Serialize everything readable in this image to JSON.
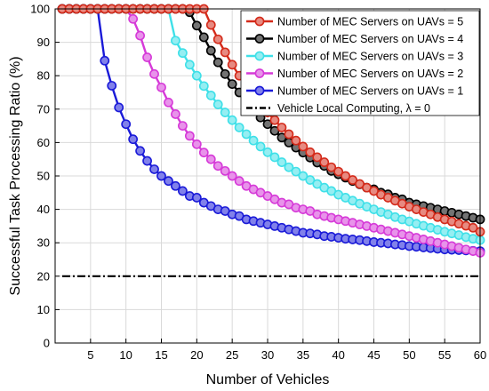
{
  "chart_data": {
    "type": "line",
    "title": "",
    "xlabel": "Number of Vehicles",
    "ylabel": "Successful Task Processing Ratio (%)",
    "xlim": [
      0,
      60
    ],
    "ylim": [
      0,
      100
    ],
    "xticks": [
      5,
      10,
      15,
      20,
      25,
      30,
      35,
      40,
      45,
      50,
      55,
      60
    ],
    "yticks": [
      0,
      10,
      20,
      30,
      40,
      50,
      60,
      70,
      80,
      90,
      100
    ],
    "grid": true,
    "legend_position": "top-right",
    "x": [
      1,
      2,
      3,
      4,
      5,
      6,
      7,
      8,
      9,
      10,
      11,
      12,
      13,
      14,
      15,
      16,
      17,
      18,
      19,
      20,
      21,
      22,
      23,
      24,
      25,
      26,
      27,
      28,
      29,
      30,
      31,
      32,
      33,
      34,
      35,
      36,
      37,
      38,
      39,
      40,
      41,
      42,
      43,
      44,
      45,
      46,
      47,
      48,
      49,
      50,
      51,
      52,
      53,
      54,
      55,
      56,
      57,
      58,
      59,
      60
    ],
    "series": [
      {
        "name": "Number of MEC Servers on UAVs = 5",
        "color": "#d42a1a",
        "marker": "circle",
        "values": [
          100,
          100,
          100,
          100,
          100,
          100,
          100,
          100,
          100,
          100,
          100,
          100,
          100,
          100,
          100,
          100,
          100,
          100,
          100,
          100,
          100,
          95.2,
          90.9,
          87.0,
          83.3,
          80.0,
          76.9,
          74.1,
          71.4,
          69.0,
          66.7,
          64.5,
          62.5,
          60.6,
          58.8,
          57.1,
          55.6,
          54.1,
          52.6,
          51.3,
          50.0,
          48.8,
          47.6,
          46.5,
          45.5,
          44.4,
          43.5,
          42.6,
          41.7,
          40.8,
          40.0,
          39.2,
          38.5,
          37.7,
          37.0,
          36.4,
          35.7,
          35.1,
          34.5,
          33.3
        ]
      },
      {
        "name": "Number of MEC Servers on UAVs = 4",
        "color": "#000000",
        "marker": "circle",
        "values": [
          100,
          100,
          100,
          100,
          100,
          100,
          100,
          100,
          100,
          100,
          100,
          100,
          100,
          100,
          100,
          100,
          100,
          100,
          99.0,
          95.0,
          91.5,
          87.5,
          84.0,
          80.5,
          77.5,
          75.0,
          72.5,
          70.0,
          67.5,
          65.5,
          63.5,
          61.5,
          60.0,
          58.5,
          57.0,
          55.5,
          54.0,
          53.0,
          51.5,
          50.5,
          49.5,
          48.5,
          47.5,
          46.5,
          46.0,
          45.0,
          44.5,
          43.5,
          43.0,
          42.0,
          41.5,
          41.0,
          40.5,
          40.0,
          39.5,
          39.0,
          38.5,
          38.0,
          37.5,
          37.0
        ]
      },
      {
        "name": "Number of MEC Servers on UAVs = 3",
        "color": "#3fe0e8",
        "marker": "circle",
        "values": [
          100,
          100,
          100,
          100,
          100,
          100,
          100,
          100,
          100,
          100,
          100,
          100,
          100,
          100,
          100,
          100,
          90.5,
          86.8,
          83.3,
          80.0,
          76.9,
          74.1,
          71.4,
          69.0,
          66.7,
          64.5,
          62.5,
          60.6,
          58.8,
          57.1,
          55.6,
          54.1,
          52.6,
          51.3,
          50.0,
          48.8,
          47.6,
          46.5,
          45.5,
          44.4,
          43.5,
          42.6,
          41.7,
          40.8,
          40.0,
          39.2,
          38.5,
          37.7,
          37.0,
          36.4,
          35.7,
          35.1,
          34.5,
          33.9,
          33.3,
          32.8,
          32.3,
          31.7,
          31.2,
          30.8
        ]
      },
      {
        "name": "Number of MEC Servers on UAVs = 2",
        "color": "#d63ad8",
        "marker": "circle",
        "values": [
          100,
          100,
          100,
          100,
          100,
          100,
          100,
          100,
          100,
          100,
          97.0,
          92.0,
          85.5,
          80.5,
          76.5,
          72.0,
          68.5,
          65.0,
          62.0,
          59.5,
          57.0,
          55.0,
          53.0,
          51.5,
          50.0,
          48.5,
          47.0,
          46.0,
          45.0,
          44.0,
          43.0,
          42.0,
          41.5,
          40.5,
          40.0,
          39.5,
          38.5,
          38.0,
          37.5,
          37.0,
          36.5,
          36.0,
          35.5,
          35.0,
          34.5,
          34.0,
          33.5,
          33.0,
          32.5,
          32.0,
          31.5,
          31.0,
          30.5,
          30.0,
          29.5,
          29.0,
          28.5,
          28.0,
          27.5,
          27.0
        ]
      },
      {
        "name": "Number of MEC Servers on UAVs = 1",
        "color": "#1a1ad8",
        "marker": "circle",
        "values": [
          100,
          100,
          100,
          100,
          100,
          100,
          84.5,
          77.0,
          70.5,
          65.5,
          61.0,
          57.5,
          54.5,
          52.0,
          50.0,
          48.5,
          47.0,
          45.5,
          44.0,
          43.5,
          42.0,
          41.0,
          40.0,
          39.5,
          38.5,
          38.0,
          37.0,
          36.5,
          36.0,
          35.5,
          35.0,
          34.5,
          34.0,
          33.5,
          33.0,
          32.8,
          32.5,
          32.0,
          31.8,
          31.5,
          31.2,
          31.0,
          30.8,
          30.5,
          30.2,
          30.0,
          29.8,
          29.5,
          29.3,
          29.0,
          28.8,
          28.6,
          28.4,
          28.2,
          28.0,
          27.9,
          27.8,
          27.7,
          27.6,
          27.5
        ]
      },
      {
        "name": "Vehicle Local Computing, λ = 0",
        "color": "#000000",
        "marker": "none",
        "line_style": "dash-dot",
        "values": [
          20,
          20,
          20,
          20,
          20,
          20,
          20,
          20,
          20,
          20,
          20,
          20,
          20,
          20,
          20,
          20,
          20,
          20,
          20,
          20,
          20,
          20,
          20,
          20,
          20,
          20,
          20,
          20,
          20,
          20,
          20,
          20,
          20,
          20,
          20,
          20,
          20,
          20,
          20,
          20,
          20,
          20,
          20,
          20,
          20,
          20,
          20,
          20,
          20,
          20,
          20,
          20,
          20,
          20,
          20,
          20,
          20,
          20,
          20,
          20
        ]
      }
    ]
  }
}
